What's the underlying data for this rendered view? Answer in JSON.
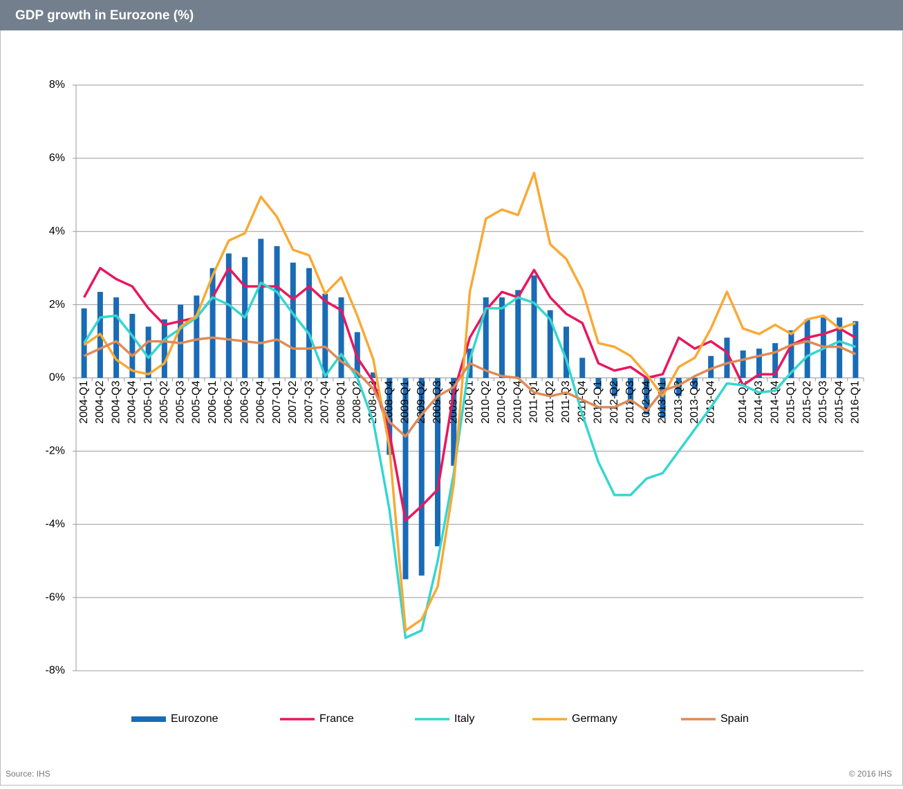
{
  "header": {
    "title": "GDP growth in Eurozone (%)"
  },
  "footer": {
    "source": "Source: IHS",
    "copyright": "© 2016 IHS"
  },
  "chart_data": {
    "type": "combo",
    "categories": [
      "2004-Q1",
      "2004-Q2",
      "2004-Q3",
      "2004-Q4",
      "2005-Q1",
      "2005-Q2",
      "2005-Q3",
      "2005-Q4",
      "2006-Q1",
      "2006-Q2",
      "2006-Q3",
      "2006-Q4",
      "2007-Q1",
      "2007-Q2",
      "2007-Q3",
      "2007-Q4",
      "2008-Q1",
      "2008-Q2",
      "2008-Q3",
      "2008-Q4",
      "2009-Q1",
      "2009-Q2",
      "2009-Q3",
      "2009-Q4",
      "2010-Q1",
      "2010-Q2",
      "2010-Q3",
      "2010-Q4",
      "2011-Q1",
      "2011-Q2",
      "2011-Q3",
      "2011-Q4",
      "2012-Q1",
      "2012-Q2",
      "2012-Q3",
      "2012-Q4",
      "2013-Q1",
      "2013-Q2",
      "2013-Q3",
      "2013-Q4",
      null,
      "2014-Q2",
      "2014-Q3",
      "2014-Q4",
      "2015-Q1",
      "2015-Q2",
      "2015-Q3",
      "2015-Q4",
      "2016-Q1"
    ],
    "series": [
      {
        "name": "Eurozone",
        "type": "bar",
        "color": "#1a6bb5",
        "values": [
          1.9,
          2.35,
          2.2,
          1.75,
          1.4,
          1.6,
          2.0,
          2.25,
          3.0,
          3.4,
          3.3,
          3.8,
          3.6,
          3.15,
          3.0,
          2.3,
          2.2,
          1.25,
          0.15,
          -2.1,
          -5.5,
          -5.4,
          -4.6,
          -2.4,
          0.8,
          2.2,
          2.2,
          2.4,
          2.8,
          1.85,
          1.4,
          0.55,
          -0.3,
          -0.5,
          -0.7,
          -1.0,
          -1.1,
          -0.5,
          -0.3,
          0.6,
          1.1,
          0.75,
          0.8,
          0.95,
          1.3,
          1.6,
          1.65,
          1.65,
          1.55
        ]
      },
      {
        "name": "France",
        "type": "line",
        "color": "#e8175d",
        "values": [
          2.2,
          3.0,
          2.7,
          2.5,
          1.9,
          1.45,
          1.55,
          1.65,
          2.2,
          3.0,
          2.5,
          2.5,
          2.5,
          2.15,
          2.5,
          2.1,
          1.85,
          0.55,
          -0.1,
          -1.5,
          -3.9,
          -3.5,
          -3.05,
          -0.4,
          1.1,
          1.85,
          2.35,
          2.2,
          2.95,
          2.2,
          1.75,
          1.5,
          0.4,
          0.2,
          0.3,
          0.0,
          0.1,
          1.1,
          0.8,
          1.0,
          0.7,
          -0.2,
          0.1,
          0.1,
          0.9,
          1.1,
          1.2,
          1.35,
          1.1
        ]
      },
      {
        "name": "Italy",
        "type": "line",
        "color": "#35d6d0",
        "values": [
          0.95,
          1.65,
          1.7,
          1.15,
          0.55,
          1.05,
          1.35,
          1.65,
          2.2,
          2.0,
          1.65,
          2.6,
          2.35,
          1.75,
          1.2,
          0.05,
          0.65,
          0.0,
          -1.2,
          -3.6,
          -7.1,
          -6.9,
          -5.0,
          -2.6,
          0.5,
          1.9,
          1.9,
          2.2,
          2.05,
          1.6,
          0.5,
          -1.0,
          -2.3,
          -3.2,
          -3.2,
          -2.75,
          -2.6,
          -2.0,
          -1.4,
          -0.8,
          -0.15,
          -0.2,
          -0.4,
          -0.35,
          0.15,
          0.6,
          0.8,
          1.0,
          0.85
        ]
      },
      {
        "name": "Germany",
        "type": "line",
        "color": "#f9a934",
        "values": [
          0.9,
          1.2,
          0.5,
          0.2,
          0.1,
          0.4,
          1.4,
          1.7,
          2.8,
          3.75,
          3.95,
          4.95,
          4.4,
          3.5,
          3.35,
          2.3,
          2.75,
          1.7,
          0.5,
          -1.9,
          -6.9,
          -6.6,
          -5.7,
          -2.9,
          2.35,
          4.35,
          4.6,
          4.45,
          5.6,
          3.65,
          3.25,
          2.4,
          0.95,
          0.85,
          0.6,
          0.1,
          -0.5,
          0.3,
          0.55,
          1.35,
          2.35,
          1.35,
          1.2,
          1.45,
          1.2,
          1.6,
          1.7,
          1.35,
          1.5
        ]
      },
      {
        "name": "Spain",
        "type": "line",
        "color": "#e08a55",
        "values": [
          0.6,
          0.8,
          1.0,
          0.6,
          1.0,
          1.0,
          0.95,
          1.05,
          1.1,
          1.05,
          1.0,
          0.95,
          1.05,
          0.8,
          0.8,
          0.85,
          0.45,
          0.15,
          -0.3,
          -1.2,
          -1.6,
          -1.0,
          -0.5,
          -0.25,
          0.4,
          0.2,
          0.05,
          0.0,
          -0.4,
          -0.5,
          -0.4,
          -0.6,
          -0.8,
          -0.8,
          -0.6,
          -0.9,
          -0.35,
          -0.2,
          0.05,
          0.25,
          0.4,
          0.5,
          0.6,
          0.7,
          0.9,
          1.0,
          0.85,
          0.85,
          0.65
        ]
      }
    ],
    "ylim": [
      -8,
      8
    ],
    "yticks": [
      {
        "value": -8,
        "label": "-8%"
      },
      {
        "value": -6,
        "label": "-6%"
      },
      {
        "value": -4,
        "label": "-4%"
      },
      {
        "value": -2,
        "label": "-2%"
      },
      {
        "value": 0,
        "label": "0%"
      },
      {
        "value": 2,
        "label": "2%"
      },
      {
        "value": 4,
        "label": "4%"
      },
      {
        "value": 6,
        "label": "6%"
      },
      {
        "value": 8,
        "label": "8%"
      }
    ],
    "grid": true,
    "legend": "bottom"
  }
}
